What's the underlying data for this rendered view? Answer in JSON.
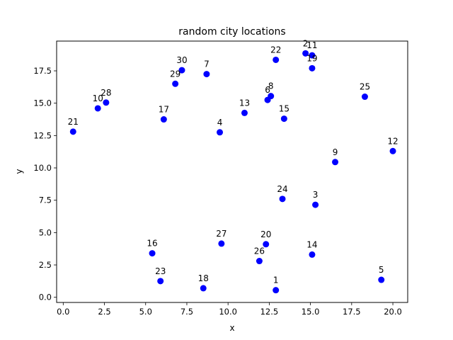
{
  "chart_data": {
    "type": "scatter",
    "title": "random city locations",
    "xlabel": "x",
    "ylabel": "y",
    "xlim": [
      -0.4,
      20.9
    ],
    "ylim": [
      -0.4,
      19.8
    ],
    "xticks": [
      "0.0",
      "2.5",
      "5.0",
      "7.5",
      "10.0",
      "12.5",
      "15.0",
      "17.5",
      "20.0"
    ],
    "xtick_values": [
      0,
      2.5,
      5,
      7.5,
      10,
      12.5,
      15,
      17.5,
      20
    ],
    "yticks": [
      "0.0",
      "2.5",
      "5.0",
      "7.5",
      "10.0",
      "12.5",
      "15.0",
      "17.5"
    ],
    "ytick_values": [
      0,
      2.5,
      5,
      7.5,
      10,
      12.5,
      15,
      17.5
    ],
    "grid": false,
    "marker_color": "#0000ff",
    "points": [
      {
        "label": "1",
        "x": 12.9,
        "y": 0.55
      },
      {
        "label": "2",
        "x": 14.7,
        "y": 18.85
      },
      {
        "label": "3",
        "x": 15.3,
        "y": 7.15
      },
      {
        "label": "4",
        "x": 9.5,
        "y": 12.75
      },
      {
        "label": "5",
        "x": 19.3,
        "y": 1.35
      },
      {
        "label": "6",
        "x": 12.4,
        "y": 15.25
      },
      {
        "label": "7",
        "x": 8.7,
        "y": 17.25
      },
      {
        "label": "8",
        "x": 12.6,
        "y": 15.55
      },
      {
        "label": "9",
        "x": 16.5,
        "y": 10.45
      },
      {
        "label": "10",
        "x": 2.1,
        "y": 14.6
      },
      {
        "label": "11",
        "x": 15.1,
        "y": 18.7
      },
      {
        "label": "12",
        "x": 20.0,
        "y": 11.3
      },
      {
        "label": "13",
        "x": 11.0,
        "y": 14.25
      },
      {
        "label": "14",
        "x": 15.1,
        "y": 3.3
      },
      {
        "label": "15",
        "x": 13.4,
        "y": 13.8
      },
      {
        "label": "16",
        "x": 5.4,
        "y": 3.4
      },
      {
        "label": "17",
        "x": 6.1,
        "y": 13.75
      },
      {
        "label": "18",
        "x": 8.5,
        "y": 0.7
      },
      {
        "label": "19",
        "x": 15.1,
        "y": 17.7
      },
      {
        "label": "20",
        "x": 12.3,
        "y": 4.1
      },
      {
        "label": "21",
        "x": 0.6,
        "y": 12.8
      },
      {
        "label": "22",
        "x": 12.9,
        "y": 18.35
      },
      {
        "label": "23",
        "x": 5.9,
        "y": 1.25
      },
      {
        "label": "24",
        "x": 13.3,
        "y": 7.6
      },
      {
        "label": "25",
        "x": 18.3,
        "y": 15.5
      },
      {
        "label": "26",
        "x": 11.9,
        "y": 2.8
      },
      {
        "label": "27",
        "x": 9.6,
        "y": 4.15
      },
      {
        "label": "28",
        "x": 2.6,
        "y": 15.05
      },
      {
        "label": "29",
        "x": 6.8,
        "y": 16.5
      },
      {
        "label": "30",
        "x": 7.2,
        "y": 17.55
      }
    ]
  }
}
